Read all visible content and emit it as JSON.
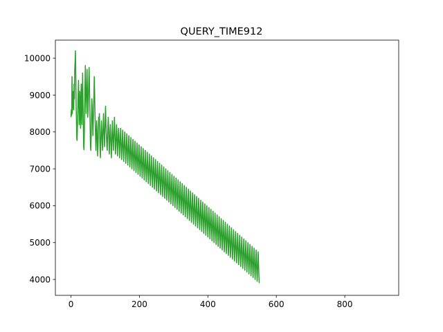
{
  "chart_data": {
    "type": "line",
    "title": "QUERY_TIME912",
    "xlabel": "",
    "ylabel": "",
    "xlim": [
      -45.6,
      957.6
    ],
    "ylim": [
      3570,
      10490
    ],
    "grid": false,
    "x_ticks": [
      0,
      200,
      400,
      600,
      800
    ],
    "y_ticks": [
      4000,
      5000,
      6000,
      7000,
      8000,
      9000,
      10000
    ],
    "series": [
      {
        "color": "#2ca02c",
        "x_start": 0,
        "x_step": 1,
        "values": [
          8400,
          8600,
          8450,
          9500,
          8500,
          8900,
          9100,
          8700,
          8600,
          9300,
          8900,
          9700,
          9900,
          10200,
          9600,
          8800,
          8300,
          7800,
          7770,
          8200,
          8600,
          9000,
          9400,
          8800,
          8200,
          8600,
          9100,
          8500,
          8100,
          8800,
          9300,
          8700,
          8200,
          9000,
          9600,
          8900,
          8300,
          7600,
          7520,
          8000,
          8700,
          9300,
          9800,
          9100,
          8500,
          8900,
          9200,
          9700,
          9100,
          8400,
          8600,
          9000,
          9400,
          9750,
          9300,
          8700,
          8100,
          7600,
          7500,
          7900,
          8400,
          8900,
          8700,
          8300,
          7900,
          8200,
          8600,
          9000,
          9500,
          9100,
          8600,
          8200,
          7800,
          7500,
          7900,
          8300,
          8100,
          7700,
          7350,
          7600,
          8000,
          8400,
          8200,
          8500,
          7900,
          7500,
          7300,
          7700,
          8100,
          8300,
          8000,
          7700,
          7500,
          7900,
          8200,
          8500,
          8100,
          7800,
          7600,
          8000,
          8400,
          8700,
          8300,
          8000,
          7800,
          7600,
          7500,
          7900,
          8200,
          8400,
          8100,
          7700,
          7400,
          7700,
          8000,
          8200,
          7900,
          7600,
          7300,
          7600,
          8000,
          8300,
          8000,
          7700,
          7500,
          7800,
          8100,
          8400,
          8050,
          7700,
          7400,
          7600,
          7900,
          8200,
          8000,
          7650,
          7350,
          7600,
          7900,
          8100,
          7900,
          7600,
          7300,
          7600,
          7850,
          8100,
          7800,
          7500,
          7250,
          7500,
          7800,
          8050,
          7750,
          7450,
          7200,
          7500,
          7750,
          8000,
          7700,
          7450,
          7150,
          7400,
          7700,
          7950,
          7650,
          7350,
          7100,
          7400,
          7650,
          7900,
          7600,
          7300,
          7050,
          7300,
          7600,
          7850,
          7550,
          7250,
          7000,
          7250,
          7550,
          7800,
          7500,
          7200,
          6950,
          7200,
          7500,
          7750,
          7450,
          7150,
          6900,
          7150,
          7450,
          7700,
          7400,
          7100,
          6850,
          7100,
          7400,
          7650,
          7350,
          7050,
          6800,
          7050,
          7350,
          7600,
          7300,
          7000,
          6750,
          7000,
          7300,
          7550,
          7250,
          6950,
          6700,
          6950,
          7250,
          7500,
          7200,
          6900,
          6650,
          6900,
          7200,
          7450,
          7150,
          6850,
          6600,
          6850,
          7150,
          7400,
          7100,
          6800,
          6550,
          6800,
          7100,
          7350,
          7050,
          6750,
          6500,
          6750,
          7050,
          7300,
          7000,
          6700,
          6450,
          6700,
          7000,
          7250,
          6950,
          6650,
          6400,
          6650,
          6950,
          7200,
          6900,
          6600,
          6350,
          6600,
          6900,
          7150,
          6850,
          6550,
          6300,
          6550,
          6850,
          7100,
          6800,
          6500,
          6250,
          6500,
          6800,
          7050,
          6750,
          6450,
          6200,
          6450,
          6750,
          7000,
          6700,
          6400,
          6150,
          6400,
          6700,
          6950,
          6650,
          6350,
          6100,
          6350,
          6650,
          6900,
          6600,
          6300,
          6050,
          6300,
          6600,
          6850,
          6550,
          6250,
          6000,
          6250,
          6550,
          6800,
          6500,
          6200,
          5950,
          6200,
          6500,
          6750,
          6450,
          6150,
          5900,
          6150,
          6450,
          6700,
          6400,
          6100,
          5850,
          6100,
          6400,
          6650,
          6350,
          6050,
          5800,
          6050,
          6350,
          6600,
          6300,
          6000,
          5750,
          6000,
          6300,
          6550,
          6250,
          5950,
          5700,
          5950,
          6250,
          6500,
          6200,
          5900,
          5650,
          5900,
          6200,
          6450,
          6150,
          5850,
          5600,
          5850,
          6150,
          6400,
          6100,
          5800,
          5550,
          5800,
          6100,
          6350,
          6050,
          5750,
          5500,
          5750,
          6050,
          6300,
          6000,
          5700,
          5450,
          5700,
          6000,
          6250,
          5950,
          5650,
          5400,
          5650,
          5950,
          6200,
          5900,
          5600,
          5350,
          5600,
          5900,
          6150,
          5850,
          5550,
          5300,
          5550,
          5850,
          6100,
          5800,
          5500,
          5250,
          5500,
          5800,
          6050,
          5750,
          5450,
          5200,
          5450,
          5750,
          6000,
          5700,
          5400,
          5150,
          5400,
          5700,
          5950,
          5650,
          5350,
          5100,
          5350,
          5650,
          5900,
          5600,
          5300,
          5050,
          5300,
          5600,
          5850,
          5550,
          5250,
          5000,
          5250,
          5550,
          5800,
          5500,
          5200,
          4950,
          5200,
          5500,
          5750,
          5450,
          5150,
          4900,
          5150,
          5450,
          5700,
          5400,
          5100,
          4850,
          5100,
          5400,
          5650,
          5350,
          5050,
          4800,
          5050,
          5350,
          5600,
          5300,
          5000,
          4750,
          5000,
          5300,
          5550,
          5250,
          4950,
          4700,
          4950,
          5250,
          5500,
          5200,
          4900,
          4650,
          4900,
          5200,
          5450,
          5150,
          4850,
          4600,
          4850,
          5150,
          5400,
          5100,
          4800,
          4550,
          4800,
          5100,
          5350,
          5050,
          4750,
          4500,
          4750,
          5050,
          5300,
          5000,
          4700,
          4450,
          4700,
          5000,
          5250,
          4950,
          4650,
          4400,
          4650,
          4950,
          5200,
          4900,
          4600,
          4350,
          4600,
          4900,
          5150,
          4850,
          4550,
          4300,
          4550,
          4850,
          5100,
          4800,
          4500,
          4250,
          4500,
          4800,
          5050,
          4750,
          4450,
          4200,
          4450,
          4750,
          5000,
          4700,
          4400,
          4150,
          4400,
          4700,
          4950,
          4650,
          4350,
          4100,
          4350,
          4650,
          4900,
          4600,
          4300,
          4050,
          4300,
          4600,
          4850,
          4550,
          4250,
          4000,
          4250,
          4550,
          4800,
          4500,
          4200,
          3950,
          4200,
          4500,
          4750,
          4450,
          4150,
          3900
        ]
      }
    ]
  }
}
